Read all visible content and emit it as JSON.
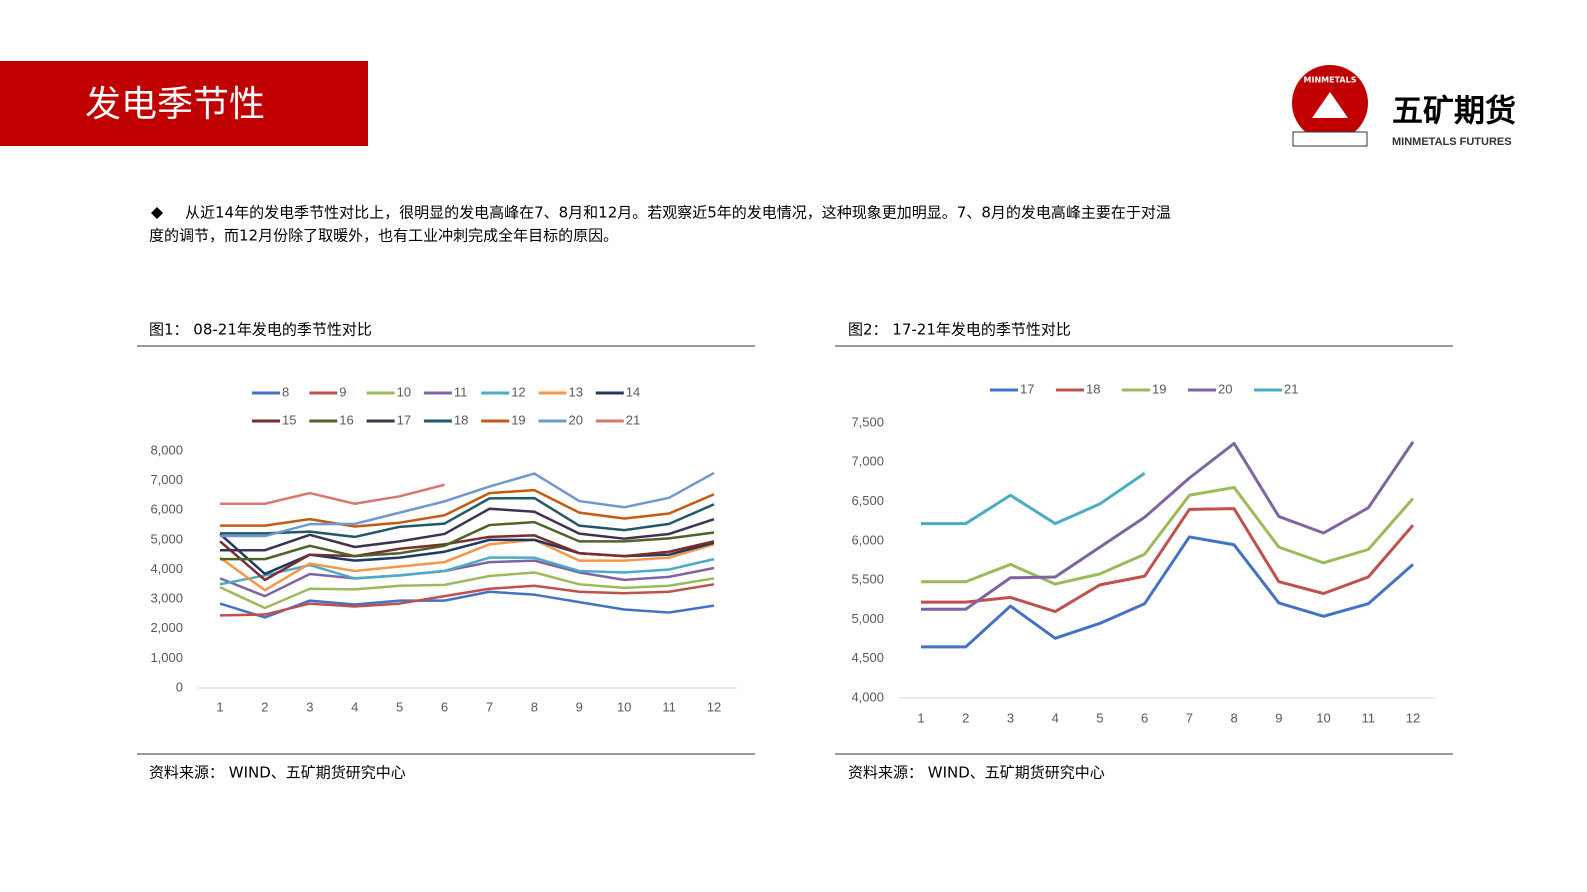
{
  "header": {
    "title": "发电季节性",
    "logo_ring": "MINMETALS",
    "logo_name": "五矿期货",
    "logo_sub": "MINMETALS FUTURES"
  },
  "body": {
    "lines": [
      "从近14年的发电季节性对比上，很明显的发电高峰在7、8月和12月。若观察近5年的发电情况，这种现象更加明显。7、8月的发电高峰主要在于对温",
      "度的调节，而12月份除了取暖外，也有工业冲刺完成全年目标的原因。"
    ]
  },
  "figures": [
    {
      "caption": "图1： 08-21年发电的季节性对比",
      "source": "资料来源： WIND、五矿期货研究中心"
    },
    {
      "caption": "图2： 17-21年发电的季节性对比",
      "source": "资料来源： WIND、五矿期货研究中心"
    }
  ],
  "chart_data": [
    {
      "type": "line",
      "grid": false,
      "categories": [
        "1",
        "2",
        "3",
        "4",
        "5",
        "6",
        "7",
        "8",
        "9",
        "10",
        "11",
        "12"
      ],
      "ylim": [
        0,
        8000
      ],
      "yticks": [
        0,
        {
          "value": 1000,
          "label": "1,000"
        },
        {
          "value": 2000,
          "label": "2,000"
        },
        {
          "value": 3000,
          "label": "3,000"
        },
        {
          "value": 4000,
          "label": "4,000"
        },
        {
          "value": 5000,
          "label": "5,000"
        },
        {
          "value": 6000,
          "label": "6,000"
        },
        {
          "value": 7000,
          "label": "7,000"
        },
        {
          "value": 8000,
          "label": "8,000"
        }
      ],
      "series": [
        {
          "name": "8",
          "color": "#4472c4",
          "values": [
            2850,
            2380,
            2950,
            2820,
            2950,
            2950,
            3250,
            3150,
            2900,
            2650,
            2550,
            2780
          ]
        },
        {
          "name": "9",
          "color": "#c0504d",
          "values": [
            2450,
            2480,
            2850,
            2750,
            2850,
            3100,
            3350,
            3450,
            3250,
            3200,
            3250,
            3500
          ]
        },
        {
          "name": "10",
          "color": "#9bbb59",
          "values": [
            3400,
            2700,
            3350,
            3330,
            3450,
            3480,
            3780,
            3900,
            3500,
            3380,
            3450,
            3700
          ]
        },
        {
          "name": "11",
          "color": "#8064a2",
          "values": [
            3700,
            3100,
            3850,
            3700,
            3800,
            3950,
            4250,
            4300,
            3900,
            3650,
            3750,
            4050
          ]
        },
        {
          "name": "12",
          "color": "#4bacc6",
          "values": [
            3500,
            3800,
            4150,
            3700,
            3800,
            3950,
            4400,
            4400,
            3950,
            3900,
            4000,
            4350
          ]
        },
        {
          "name": "13",
          "color": "#f79646",
          "values": [
            4400,
            3300,
            4200,
            3950,
            4100,
            4250,
            4850,
            5000,
            4300,
            4300,
            4400,
            4850
          ]
        },
        {
          "name": "14",
          "color": "#1f3864",
          "values": [
            5200,
            3850,
            4500,
            4300,
            4400,
            4600,
            5000,
            5000,
            4550,
            4450,
            4500,
            4900
          ]
        },
        {
          "name": "15",
          "color": "#7b2c2c",
          "values": [
            4950,
            3650,
            4500,
            4450,
            4700,
            4850,
            5100,
            5150,
            4550,
            4450,
            4600,
            4950
          ]
        },
        {
          "name": "16",
          "color": "#4f6228",
          "values": [
            4350,
            4350,
            4800,
            4450,
            4550,
            4800,
            5500,
            5600,
            4950,
            4950,
            5050,
            5250
          ]
        },
        {
          "name": "17",
          "color": "#3f3151",
          "values": [
            4650,
            4650,
            5170,
            4760,
            4950,
            5200,
            6050,
            5950,
            5210,
            5040,
            5200,
            5700
          ]
        },
        {
          "name": "18",
          "color": "#215968",
          "values": [
            5220,
            5220,
            5280,
            5100,
            5440,
            5550,
            6400,
            6410,
            5480,
            5330,
            5540,
            6200
          ]
        },
        {
          "name": "19",
          "color": "#c55a11",
          "values": [
            5480,
            5480,
            5700,
            5450,
            5580,
            5830,
            6580,
            6680,
            5920,
            5720,
            5890,
            6540
          ]
        },
        {
          "name": "20",
          "color": "#6f97d0",
          "values": [
            5130,
            5130,
            5530,
            5540,
            5920,
            6300,
            6800,
            7240,
            6310,
            6100,
            6420,
            7260
          ]
        },
        {
          "name": "21",
          "color": "#d9776f",
          "values": [
            6220,
            6220,
            6580,
            6220,
            6470,
            6860,
            null,
            null,
            null,
            null,
            null,
            null
          ]
        }
      ]
    },
    {
      "type": "line",
      "grid": false,
      "categories": [
        "1",
        "2",
        "3",
        "4",
        "5",
        "6",
        "7",
        "8",
        "9",
        "10",
        "11",
        "12"
      ],
      "ylim": [
        4000,
        7500
      ],
      "yticks": [
        {
          "value": 4000,
          "label": "4,000"
        },
        {
          "value": 4500,
          "label": "4,500"
        },
        {
          "value": 5000,
          "label": "5,000"
        },
        {
          "value": 5500,
          "label": "5,500"
        },
        {
          "value": 6000,
          "label": "6,000"
        },
        {
          "value": 6500,
          "label": "6,500"
        },
        {
          "value": 7000,
          "label": "7,000"
        },
        {
          "value": 7500,
          "label": "7,500"
        }
      ],
      "series": [
        {
          "name": "17",
          "color": "#4472c4",
          "values": [
            4650,
            4650,
            5170,
            4760,
            4950,
            5200,
            6050,
            5950,
            5210,
            5040,
            5200,
            5700
          ]
        },
        {
          "name": "18",
          "color": "#c0504d",
          "values": [
            5220,
            5220,
            5280,
            5100,
            5440,
            5550,
            6400,
            6410,
            5480,
            5330,
            5540,
            6200
          ]
        },
        {
          "name": "19",
          "color": "#9bbb59",
          "values": [
            5480,
            5480,
            5700,
            5450,
            5580,
            5830,
            6580,
            6680,
            5920,
            5720,
            5890,
            6540
          ]
        },
        {
          "name": "20",
          "color": "#8064a2",
          "values": [
            5130,
            5130,
            5530,
            5540,
            5920,
            6300,
            6800,
            7240,
            6310,
            6100,
            6420,
            7260
          ]
        },
        {
          "name": "21",
          "color": "#4bacc6",
          "values": [
            6220,
            6220,
            6580,
            6220,
            6470,
            6860,
            null,
            null,
            null,
            null,
            null,
            null
          ]
        }
      ]
    }
  ]
}
